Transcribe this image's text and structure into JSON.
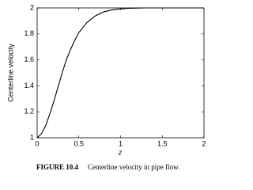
{
  "chart_data": {
    "type": "line",
    "y_label": "Centerline velocity",
    "x_label": "z",
    "x": [
      0,
      0.05,
      0.1,
      0.15,
      0.2,
      0.25,
      0.3,
      0.35,
      0.4,
      0.45,
      0.5,
      0.6,
      0.7,
      0.8,
      0.9,
      1.0,
      1.1,
      1.2,
      1.3,
      1.5,
      1.75,
      2
    ],
    "values": [
      1,
      1.03,
      1.09,
      1.18,
      1.28,
      1.39,
      1.5,
      1.6,
      1.68,
      1.75,
      1.81,
      1.89,
      1.94,
      1.97,
      1.985,
      1.993,
      1.997,
      1.999,
      2,
      2,
      2,
      2
    ],
    "color": "#000000",
    "xlim": [
      0,
      2
    ],
    "xticks": [
      0,
      0.5,
      1,
      1.5,
      2
    ],
    "ylim": [
      1,
      2
    ],
    "yticks": [
      1,
      1.2,
      1.4,
      1.6,
      1.8,
      2
    ],
    "grid": false,
    "caption": {
      "label": "FIGURE 10.4",
      "text": "Centerline velocity in pipe flow."
    }
  }
}
